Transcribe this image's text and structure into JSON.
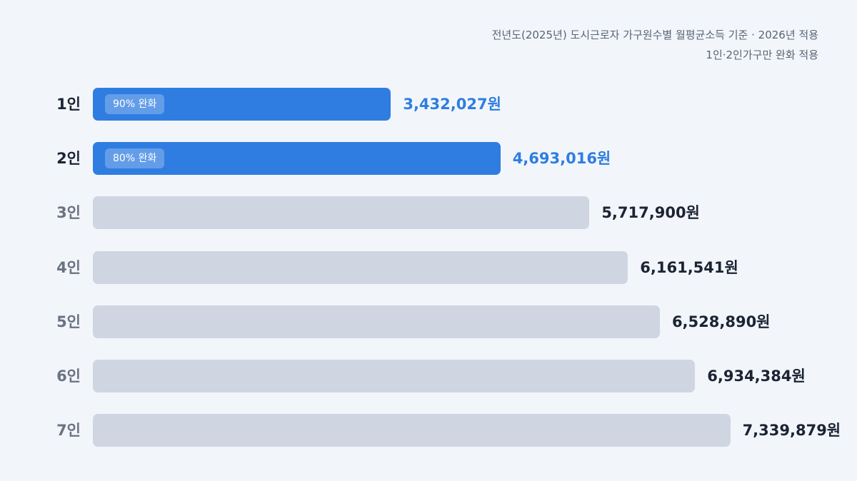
{
  "note": {
    "line1": "전년도(2025년) 도시근로자 가구원수별 월평균소득 기준 · 2026년 적용",
    "line2": "1인·2인가구만 완화 적용"
  },
  "colors": {
    "highlight": "#2f7de1",
    "normal_bar": "#cfd6e1",
    "background": "#f2f6fb"
  },
  "chart_data": {
    "type": "bar",
    "orientation": "horizontal",
    "categories": [
      "1인",
      "2인",
      "3인",
      "4인",
      "5인",
      "6인",
      "7인"
    ],
    "values": [
      3432027,
      4693016,
      5717900,
      6161541,
      6528890,
      6934384,
      7339879
    ],
    "value_labels": [
      "3,432,027원",
      "4,693,016원",
      "5,717,900원",
      "6,161,541원",
      "6,528,890원",
      "6,934,384원",
      "7,339,879원"
    ],
    "badges": [
      "90% 완화",
      "80% 완화",
      "",
      "",
      "",
      "",
      ""
    ],
    "highlighted": [
      true,
      true,
      false,
      false,
      false,
      false,
      false
    ],
    "xlim": [
      0,
      8100000
    ],
    "grid": false
  }
}
